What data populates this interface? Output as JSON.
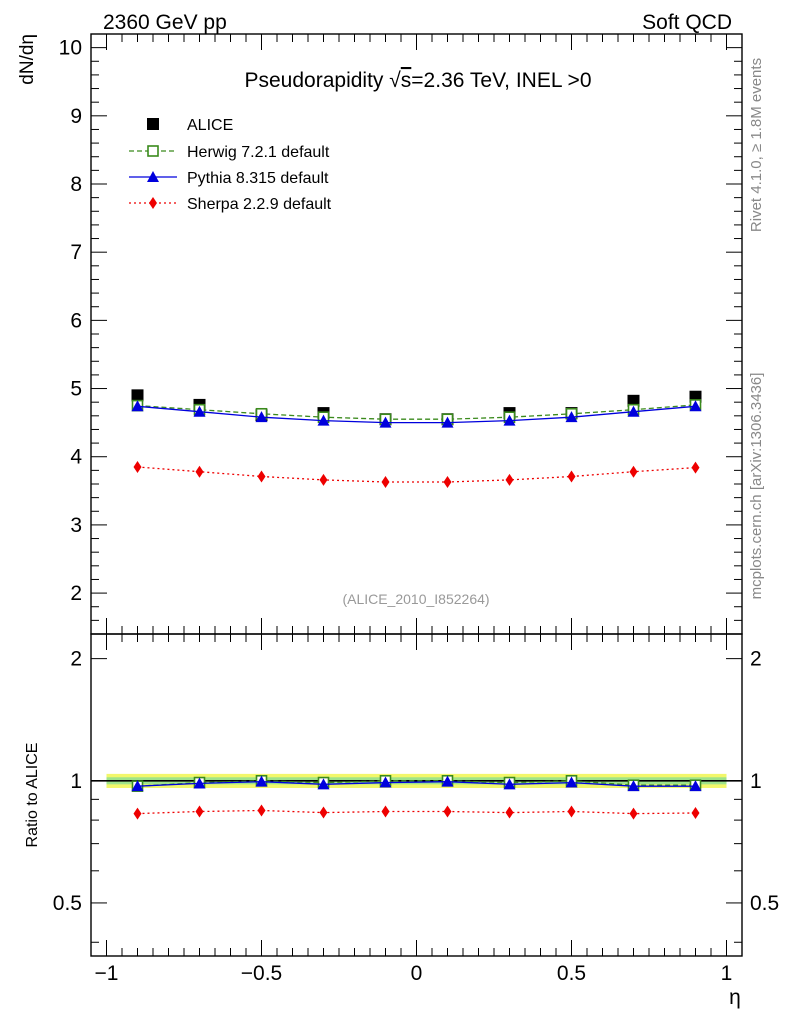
{
  "header": {
    "left": "2360 GeV pp",
    "right": "Soft QCD"
  },
  "side_labels": {
    "rivet": "Rivet 4.1.0, ≥ 1.8M events",
    "mcplots": "mcplots.cern.ch [arXiv:1306.3436]"
  },
  "chart_data": {
    "type": "line",
    "title_prefix": "Pseudorapidity ",
    "title_sqrt": "√",
    "title_s": "s",
    "title_rest": "=2.36 TeV, INEL >0",
    "analysis_id": "(ALICE_2010_I852264)",
    "xlabel": "η",
    "ylabel": "dN/dη",
    "ratio_ylabel": "Ratio to ALICE",
    "xlim": [
      -1.05,
      1.05
    ],
    "ylim": [
      1.4,
      10.2
    ],
    "ratio_ylim": [
      0.37,
      2.3
    ],
    "x_ticks": [
      -1,
      -0.5,
      0,
      0.5,
      1
    ],
    "x_tick_labels": [
      "−1",
      "−0.5",
      "0",
      "0.5",
      "1"
    ],
    "y_ticks": [
      2,
      3,
      4,
      5,
      6,
      7,
      8,
      9,
      10
    ],
    "y_tick_labels": [
      "2",
      "3",
      "4",
      "5",
      "6",
      "7",
      "8",
      "9",
      "10"
    ],
    "ratio_ticks": [
      0.5,
      1,
      2
    ],
    "ratio_tick_labels": [
      "0.5",
      "1",
      "2"
    ],
    "ratio_band": {
      "outer": [
        0.96,
        1.04
      ],
      "inner": [
        0.98,
        1.02
      ]
    },
    "x": [
      -0.9,
      -0.7,
      -0.5,
      -0.3,
      -0.1,
      0.1,
      0.3,
      0.5,
      0.7,
      0.9
    ],
    "series": [
      {
        "name": "ALICE",
        "marker": "square-filled",
        "color": "#000000",
        "values": [
          4.9,
          4.76,
          4.61,
          4.64,
          4.55,
          4.55,
          4.64,
          4.64,
          4.82,
          4.88
        ]
      },
      {
        "name": "Herwig 7.2.1 default",
        "marker": "square-open",
        "color": "#3a8a1c",
        "dash": "5,3",
        "values": [
          4.75,
          4.69,
          4.63,
          4.58,
          4.55,
          4.55,
          4.58,
          4.63,
          4.69,
          4.76
        ],
        "ratio": [
          0.97,
          0.99,
          1.0,
          0.99,
          1.0,
          1.0,
          0.99,
          1.0,
          0.975,
          0.975
        ]
      },
      {
        "name": "Pythia 8.315 default",
        "marker": "triangle-filled",
        "color": "#0000dd",
        "dash": "",
        "values": [
          4.74,
          4.66,
          4.58,
          4.53,
          4.5,
          4.5,
          4.53,
          4.58,
          4.66,
          4.74
        ],
        "ratio": [
          0.97,
          0.985,
          0.995,
          0.98,
          0.99,
          0.995,
          0.98,
          0.99,
          0.97,
          0.97
        ]
      },
      {
        "name": "Sherpa 2.2.9 default",
        "marker": "diamond-filled",
        "color": "#ee0000",
        "dash": "2,3",
        "values": [
          3.85,
          3.78,
          3.71,
          3.66,
          3.63,
          3.63,
          3.66,
          3.71,
          3.78,
          3.84
        ],
        "ratio": [
          0.83,
          0.84,
          0.845,
          0.835,
          0.84,
          0.84,
          0.835,
          0.84,
          0.83,
          0.833
        ]
      }
    ]
  }
}
